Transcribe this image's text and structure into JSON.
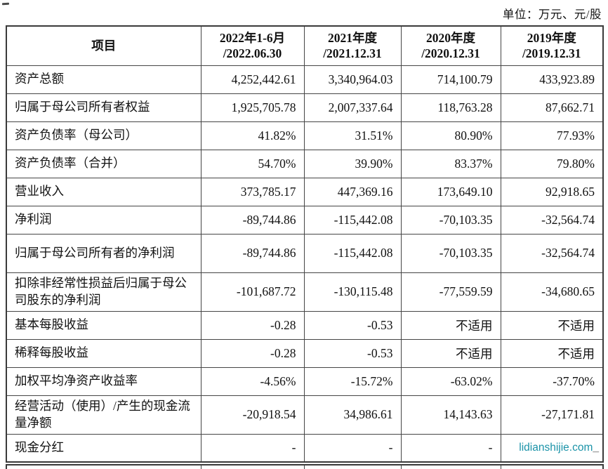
{
  "page": {
    "unit_label": "单位：万元、元/股",
    "watermark_text": "lidianshijie.com",
    "watermark_suffix": "_",
    "watermark_color": "#1b93a8"
  },
  "table": {
    "header": {
      "item": "项目",
      "periods": [
        {
          "line1": "2022年1-6月",
          "line2": "/2022.06.30"
        },
        {
          "line1": "2021年度",
          "line2": "/2021.12.31"
        },
        {
          "line1": "2020年度",
          "line2": "/2020.12.31"
        },
        {
          "line1": "2019年度",
          "line2": "/2019.12.31"
        }
      ]
    },
    "rows": [
      {
        "label": "资产总额",
        "values": [
          "4,252,442.61",
          "3,340,964.03",
          "714,100.79",
          "433,923.89"
        ]
      },
      {
        "label": "归属于母公司所有者权益",
        "values": [
          "1,925,705.78",
          "2,007,337.64",
          "118,763.28",
          "87,662.71"
        ]
      },
      {
        "label": "资产负债率（母公司）",
        "values": [
          "41.82%",
          "31.51%",
          "80.90%",
          "77.93%"
        ]
      },
      {
        "label": "资产负债率（合并）",
        "values": [
          "54.70%",
          "39.90%",
          "83.37%",
          "79.80%"
        ]
      },
      {
        "label": "营业收入",
        "values": [
          "373,785.17",
          "447,369.16",
          "173,649.10",
          "92,918.65"
        ]
      },
      {
        "label": "净利润",
        "values": [
          "-89,744.86",
          "-115,442.08",
          "-70,103.35",
          "-32,564.74"
        ]
      },
      {
        "label": "归属于母公司所有者的净利润",
        "values": [
          "-89,744.86",
          "-115,442.08",
          "-70,103.35",
          "-32,564.74"
        ]
      },
      {
        "label": "扣除非经常性损益后归属于母公司股东的净利润",
        "values": [
          "-101,687.72",
          "-130,115.48",
          "-77,559.59",
          "-34,680.65"
        ]
      },
      {
        "label": "基本每股收益",
        "values": [
          "-0.28",
          "-0.53",
          "不适用",
          "不适用"
        ]
      },
      {
        "label": "稀释每股收益",
        "values": [
          "-0.28",
          "-0.53",
          "不适用",
          "不适用"
        ]
      },
      {
        "label": "加权平均净资产收益率",
        "values": [
          "-4.56%",
          "-15.72%",
          "-63.02%",
          "-37.70%"
        ]
      },
      {
        "label": "经营活动（使用）/产生的现金流量净额",
        "values": [
          "-20,918.54",
          "34,986.61",
          "14,143.63",
          "-27,171.81"
        ]
      },
      {
        "label": "现金分红",
        "values": [
          "-",
          "-",
          "-",
          ""
        ]
      }
    ]
  }
}
